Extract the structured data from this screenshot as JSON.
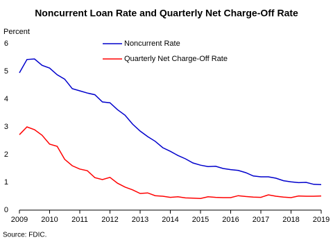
{
  "chart_data": {
    "type": "line",
    "title": "Noncurrent Loan Rate and Quarterly Net Charge-Off Rate",
    "y_label": "Percent",
    "source": "Source: FDIC.",
    "x": [
      2009,
      2009.25,
      2009.5,
      2009.75,
      2010,
      2010.25,
      2010.5,
      2010.75,
      2011,
      2011.25,
      2011.5,
      2011.75,
      2012,
      2012.25,
      2012.5,
      2012.75,
      2013,
      2013.25,
      2013.5,
      2013.75,
      2014,
      2014.25,
      2014.5,
      2014.75,
      2015,
      2015.25,
      2015.5,
      2015.75,
      2016,
      2016.25,
      2016.5,
      2016.75,
      2017,
      2017.25,
      2017.5,
      2017.75,
      2018,
      2018.25,
      2018.5,
      2018.75,
      2019
    ],
    "series": [
      {
        "name": "Noncurrent Rate",
        "color": "#0000cc",
        "values": [
          4.95,
          5.43,
          5.45,
          5.22,
          5.12,
          4.88,
          4.72,
          4.38,
          4.3,
          4.22,
          4.16,
          3.9,
          3.87,
          3.62,
          3.42,
          3.1,
          2.85,
          2.65,
          2.48,
          2.25,
          2.12,
          1.97,
          1.85,
          1.7,
          1.62,
          1.57,
          1.58,
          1.5,
          1.46,
          1.43,
          1.35,
          1.23,
          1.2,
          1.2,
          1.15,
          1.06,
          1.02,
          0.99,
          1.0,
          0.93,
          0.92
        ]
      },
      {
        "name": "Quarterly Net Charge-Off Rate",
        "color": "#ff0000",
        "values": [
          2.72,
          3.0,
          2.9,
          2.7,
          2.38,
          2.3,
          1.83,
          1.6,
          1.48,
          1.42,
          1.17,
          1.1,
          1.18,
          0.97,
          0.83,
          0.73,
          0.6,
          0.62,
          0.52,
          0.5,
          0.46,
          0.48,
          0.44,
          0.43,
          0.42,
          0.48,
          0.46,
          0.45,
          0.45,
          0.52,
          0.49,
          0.47,
          0.46,
          0.55,
          0.5,
          0.47,
          0.45,
          0.51,
          0.5,
          0.5,
          0.51
        ]
      }
    ],
    "xlim": [
      2009,
      2019
    ],
    "xticks": [
      2009,
      2010,
      2011,
      2012,
      2013,
      2014,
      2015,
      2016,
      2017,
      2018,
      2019
    ],
    "ylim": [
      0,
      6
    ],
    "yticks": [
      0,
      1,
      2,
      3,
      4,
      5,
      6
    ]
  }
}
